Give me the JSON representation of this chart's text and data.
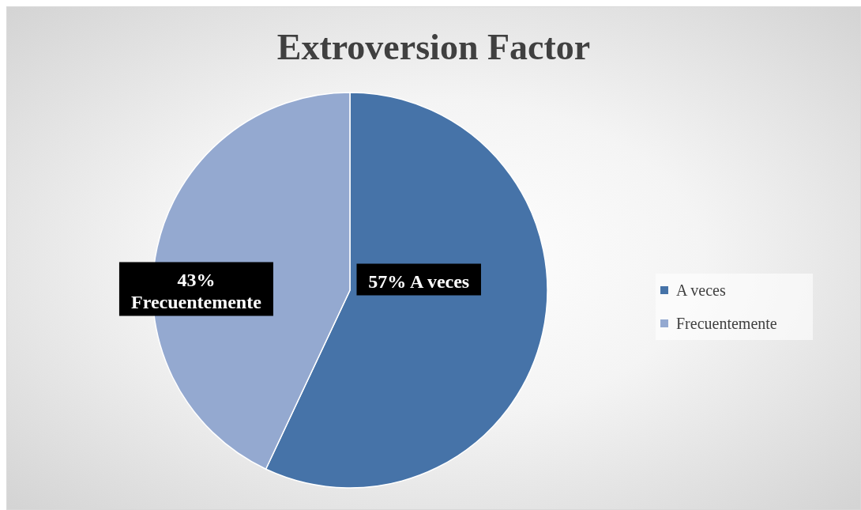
{
  "chart_data": {
    "type": "pie",
    "title": "Extroversion Factor",
    "categories": [
      "A veces",
      "Frecuentemente"
    ],
    "values": [
      57,
      43
    ],
    "colors": [
      "#4673a8",
      "#94a9d0"
    ],
    "value_labels": [
      "57% A veces",
      "43% Frecuentemente"
    ],
    "legend": "right"
  }
}
